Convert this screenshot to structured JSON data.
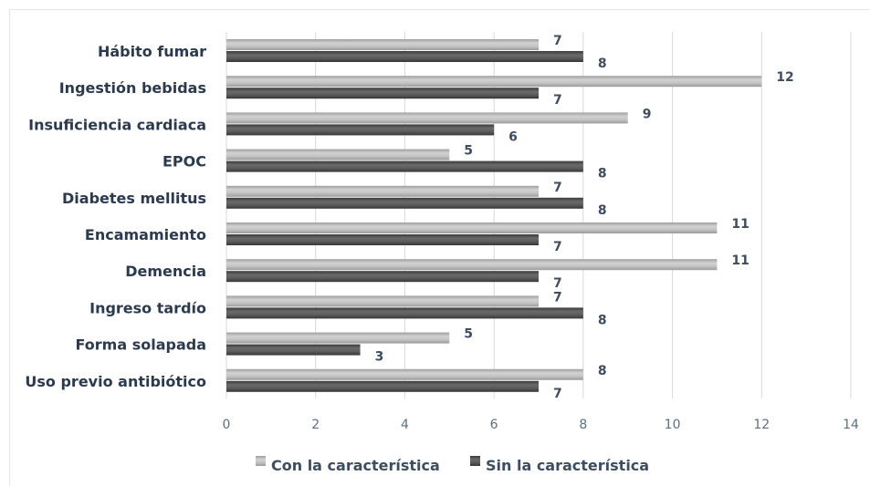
{
  "chart_data": {
    "type": "bar",
    "orientation": "horizontal",
    "categories": [
      "Hábito fumar",
      "Ingestión bebidas",
      "Insuficiencia cardiaca",
      "EPOC",
      "Diabetes mellitus",
      "Encamamiento",
      "Demencia",
      "Ingreso tardío",
      "Forma solapada",
      "Uso previo antibiótico"
    ],
    "series": [
      {
        "name": "Con la característica",
        "color": "#b3b3b3",
        "values": [
          7,
          12,
          9,
          5,
          7,
          11,
          11,
          7,
          5,
          8
        ]
      },
      {
        "name": "Sin la característica",
        "color": "#595959",
        "values": [
          8,
          7,
          6,
          8,
          8,
          7,
          7,
          8,
          3,
          7
        ]
      }
    ],
    "xlim": [
      0,
      14
    ],
    "xticks": [
      0,
      2,
      4,
      6,
      8,
      10,
      12,
      14
    ],
    "grid": true,
    "legend": "bottom",
    "data_labels": true
  }
}
